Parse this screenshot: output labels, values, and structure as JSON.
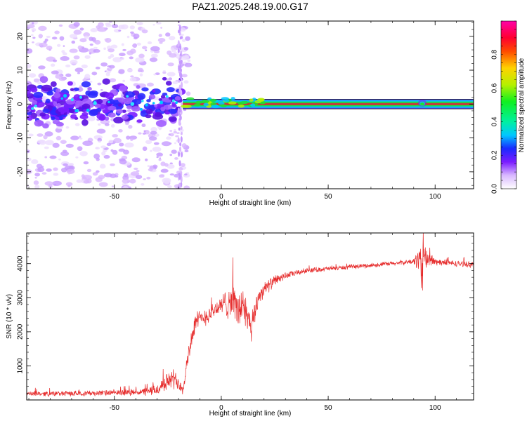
{
  "title": "PAZ1.2025.248.19.00.G17",
  "chart_data": [
    {
      "type": "heatmap",
      "name": "spectrogram",
      "xlabel": "Height of straight line (km)",
      "ylabel": "Frequency (Hz)",
      "xlim": [
        -91,
        118
      ],
      "ylim": [
        -25,
        24.5
      ],
      "xticks": [
        -50,
        0,
        50,
        100
      ],
      "xtick_labels": [
        "-50",
        "0",
        "50",
        "100"
      ],
      "yticks": [
        -20,
        -10,
        0,
        10,
        20
      ],
      "ytick_labels": [
        "-20",
        "-10",
        "0",
        "10",
        "20"
      ],
      "colorbar": {
        "label": "Normalized spectral amplitude",
        "range": [
          0,
          1
        ],
        "ticks": [
          0.0,
          0.2,
          0.4,
          0.6,
          0.8
        ],
        "tick_labels": [
          "0.0",
          "0.2",
          "0.4",
          "0.6",
          "0.8"
        ]
      },
      "features": {
        "noisy_region_x": [
          -91,
          -18
        ],
        "tone_start_x": -18,
        "tone_frequency_hz": 0,
        "tone_band_hz": [
          -1,
          1
        ],
        "bump_x": 94
      }
    },
    {
      "type": "line",
      "name": "snr",
      "xlabel": "Height of straight line (km)",
      "ylabel": "SNR (10 * v/v)",
      "xlim": [
        -91,
        118
      ],
      "ylim": [
        0,
        4900
      ],
      "xticks": [
        -50,
        0,
        50,
        100
      ],
      "xtick_labels": [
        "-50",
        "0",
        "50",
        "100"
      ],
      "yticks": [
        1000,
        2000,
        3000,
        4000
      ],
      "ytick_labels": [
        "1000",
        "2000",
        "3000",
        "4000"
      ],
      "color": "#e62d2d",
      "series": [
        {
          "name": "SNR",
          "x": [
            -91,
            -70,
            -50,
            -40,
            -35,
            -30,
            -25,
            -22,
            -20,
            -18,
            -16,
            -14,
            -12,
            -10,
            -6,
            -2,
            0,
            3,
            6,
            8,
            10,
            12,
            14,
            16,
            18,
            20,
            25,
            30,
            35,
            40,
            50,
            60,
            70,
            80,
            90,
            93,
            94,
            95,
            100,
            110,
            118
          ],
          "y": [
            180,
            190,
            210,
            230,
            240,
            300,
            550,
            650,
            520,
            320,
            1100,
            1800,
            2300,
            2350,
            2500,
            2700,
            2750,
            2900,
            2950,
            2500,
            2900,
            2400,
            2000,
            2700,
            3100,
            3250,
            3500,
            3650,
            3720,
            3800,
            3850,
            3900,
            3950,
            4000,
            4060,
            4150,
            3900,
            4180,
            4050,
            4000,
            3970
          ],
          "noise": [
            80,
            90,
            100,
            110,
            140,
            200,
            300,
            320,
            300,
            200,
            300,
            350,
            350,
            320,
            300,
            300,
            300,
            600,
            500,
            700,
            700,
            600,
            500,
            400,
            300,
            250,
            180,
            120,
            100,
            90,
            80,
            80,
            80,
            80,
            90,
            500,
            1500,
            500,
            120,
            100,
            100
          ]
        }
      ]
    }
  ]
}
